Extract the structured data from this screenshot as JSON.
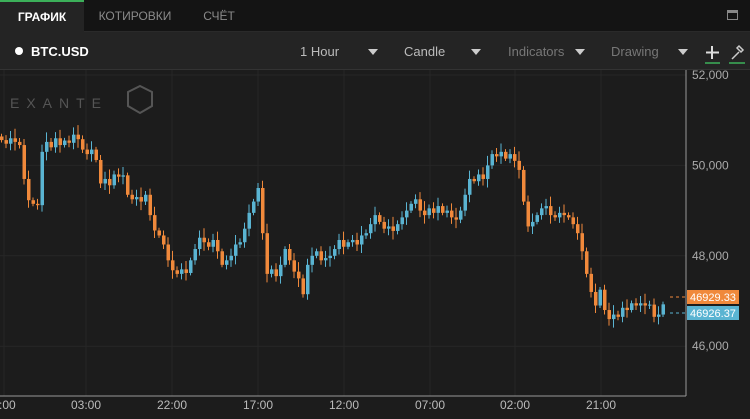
{
  "tabs": [
    {
      "label": "ГРАФИК",
      "active": true
    },
    {
      "label": "КОТИРОВКИ"
    },
    {
      "label": "СЧЁТ"
    }
  ],
  "toolbar": {
    "symbol": "BTC.USD",
    "interval": "1 Hour",
    "chart_type": "Candle",
    "indicators": "Indicators",
    "drawing": "Drawing",
    "add_icon": "plus-icon",
    "tools_icon": "wrench-icon"
  },
  "watermark": "EXANTE",
  "colors": {
    "up": "#5ab4d2",
    "down": "#f0893b",
    "background": "#1c1c1c"
  },
  "chart_data": {
    "type": "candlestick",
    "y_ticks": [
      52000,
      50000,
      48000,
      46000
    ],
    "y_tick_labels": [
      "52,000",
      "50,000",
      "48,000",
      "46,000"
    ],
    "ylim": [
      45000,
      52000
    ],
    "x_tick_labels": [
      "0:00",
      "03:00",
      "22:00",
      "17:00",
      "12:00",
      "07:00",
      "02:00",
      "21:00"
    ],
    "closes": [
      50560,
      50480,
      50600,
      50520,
      50450,
      49700,
      49230,
      49150,
      49120,
      50300,
      50520,
      50400,
      50600,
      50450,
      50550,
      50500,
      50680,
      50580,
      50350,
      50250,
      50350,
      50120,
      49600,
      49700,
      49560,
      49800,
      49750,
      49780,
      49350,
      49250,
      49300,
      49200,
      49350,
      48900,
      48560,
      48450,
      48250,
      47900,
      47680,
      47600,
      47700,
      47620,
      47900,
      48150,
      48400,
      48300,
      48200,
      48350,
      48100,
      47800,
      47900,
      48000,
      48250,
      48300,
      48600,
      48950,
      49200,
      49500,
      48500,
      47600,
      47700,
      47550,
      47800,
      48150,
      47900,
      47650,
      47500,
      47150,
      47800,
      48000,
      48100,
      47900,
      47950,
      48000,
      48150,
      48350,
      48200,
      48300,
      48350,
      48250,
      48450,
      48500,
      48700,
      48900,
      48750,
      48600,
      48650,
      48550,
      48700,
      48850,
      49000,
      49150,
      49250,
      49000,
      48900,
      49050,
      48950,
      49100,
      48950,
      49000,
      48850,
      48800,
      49000,
      49350,
      49700,
      49650,
      49800,
      49700,
      50000,
      50250,
      50200,
      50300,
      50150,
      50250,
      50100,
      49900,
      49200,
      48650,
      48750,
      48900,
      49050,
      49100,
      48900,
      48850,
      48950,
      48900,
      48850,
      48700,
      48500,
      48100,
      47600,
      47200,
      46900,
      47250,
      46800,
      46600,
      46700,
      46650,
      46850,
      46800,
      46950,
      46900,
      46950,
      46900,
      46920,
      46650,
      46700,
      46926
    ],
    "ask_label": "46929.33",
    "bid_label": "46926.37"
  }
}
